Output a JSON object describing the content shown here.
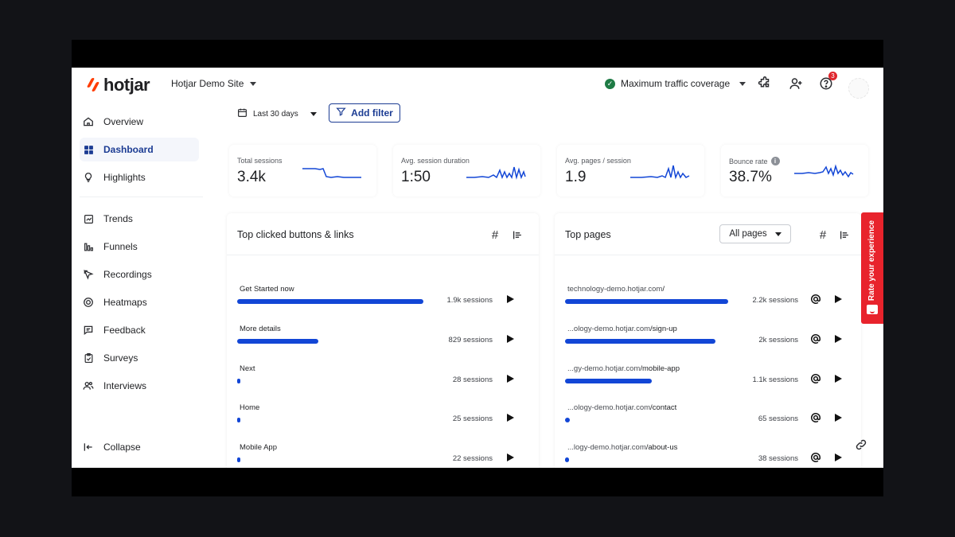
{
  "brand": {
    "name": "hotjar",
    "accent": "#ff3c00"
  },
  "header": {
    "site_name": "Hotjar Demo Site",
    "coverage_label": "Maximum traffic coverage",
    "notification_count": "3"
  },
  "sidebar": {
    "items": [
      {
        "label": "Overview",
        "icon": "home-icon"
      },
      {
        "label": "Dashboard",
        "icon": "grid-icon",
        "active": true
      },
      {
        "label": "Highlights",
        "icon": "lightbulb-icon"
      },
      {
        "label": "Trends",
        "icon": "trend-chart-icon"
      },
      {
        "label": "Funnels",
        "icon": "funnel-bars-icon"
      },
      {
        "label": "Recordings",
        "icon": "recording-icon"
      },
      {
        "label": "Heatmaps",
        "icon": "heatmap-icon"
      },
      {
        "label": "Feedback",
        "icon": "feedback-icon"
      },
      {
        "label": "Surveys",
        "icon": "clipboard-icon"
      },
      {
        "label": "Interviews",
        "icon": "people-icon"
      }
    ],
    "collapse_label": "Collapse"
  },
  "filters": {
    "date_range": "Last 30 days",
    "add_filter_label": "Add filter"
  },
  "metrics": [
    {
      "label": "Total sessions",
      "value": "3.4k"
    },
    {
      "label": "Avg. session duration",
      "value": "1:50"
    },
    {
      "label": "Avg. pages / session",
      "value": "1.9"
    },
    {
      "label": "Bounce rate",
      "value": "38.7%",
      "has_info": true
    }
  ],
  "top_clicked": {
    "title": "Top clicked buttons & links",
    "rows": [
      {
        "label": "Get Started now",
        "sessions": "1.9k sessions",
        "fraction": 1.0
      },
      {
        "label": "More details",
        "sessions": "829 sessions",
        "fraction": 0.436
      },
      {
        "label": "Next",
        "sessions": "28 sessions",
        "fraction": 0.015
      },
      {
        "label": "Home",
        "sessions": "25 sessions",
        "fraction": 0.013
      },
      {
        "label": "Mobile App",
        "sessions": "22 sessions",
        "fraction": 0.012
      }
    ]
  },
  "top_pages": {
    "title": "Top pages",
    "filter_value": "All pages",
    "rows": [
      {
        "prefix": "technology-demo.hotjar.com",
        "path": "/",
        "sessions": "2.2k sessions",
        "fraction": 1.0
      },
      {
        "prefix": "...ology-demo.hotjar.com",
        "path": "/sign-up",
        "sessions": "2k sessions",
        "fraction": 0.92
      },
      {
        "prefix": "...gy-demo.hotjar.com",
        "path": "/mobile-app",
        "sessions": "1.1k sessions",
        "fraction": 0.53
      },
      {
        "prefix": "...ology-demo.hotjar.com",
        "path": "/contact",
        "sessions": "65 sessions",
        "fraction": 0.03
      },
      {
        "prefix": "...logy-demo.hotjar.com",
        "path": "/about-us",
        "sessions": "38 sessions",
        "fraction": 0.018
      }
    ]
  },
  "feedback_tab": {
    "label": "Rate your experience"
  },
  "colors": {
    "bar": "#1246d6",
    "primary": "#1c3c93",
    "feedback": "#e8232c"
  }
}
